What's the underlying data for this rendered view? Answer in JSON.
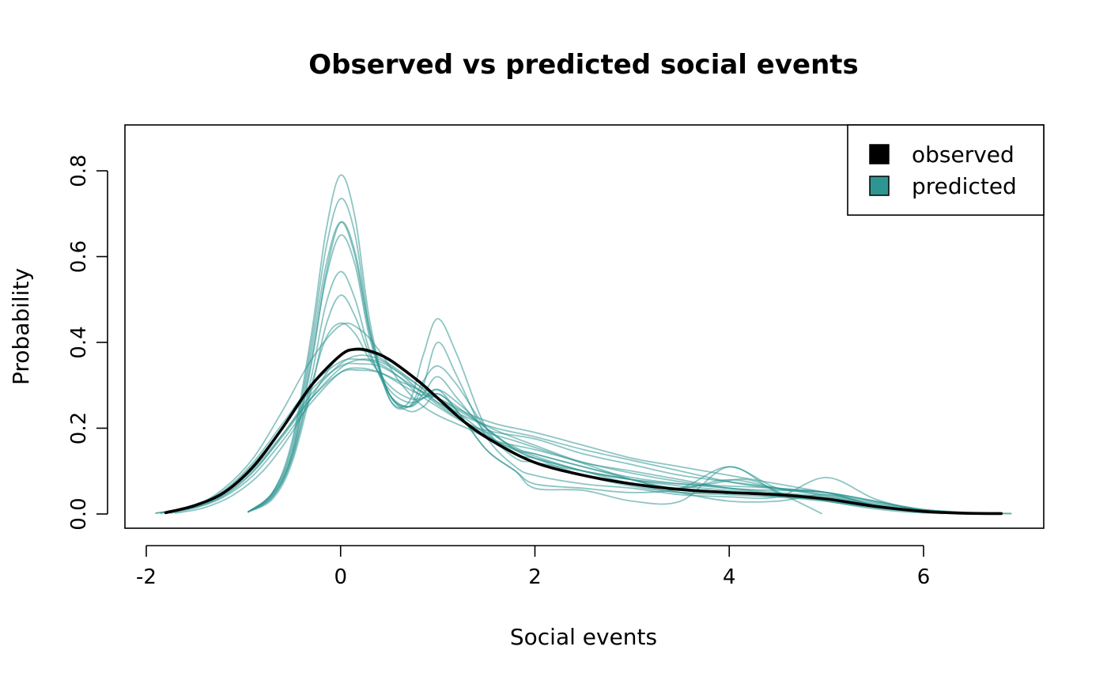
{
  "chart_data": {
    "type": "line",
    "title": "Observed vs predicted social events",
    "xlabel": "Social events",
    "ylabel": "Probability",
    "xlim": [
      -2,
      7
    ],
    "ylim": [
      0,
      0.9
    ],
    "xticks": [
      -2,
      0,
      2,
      4,
      6
    ],
    "yticks": [
      0.0,
      0.2,
      0.4,
      0.6,
      0.8
    ],
    "xtick_labels": [
      "-2",
      "0",
      "2",
      "4",
      "6"
    ],
    "ytick_labels": [
      "0.0",
      "0.2",
      "0.4",
      "0.6",
      "0.8"
    ],
    "grid": false,
    "legend": {
      "position": "top-right",
      "entries": [
        {
          "label": "observed",
          "color": "#000000"
        },
        {
          "label": "predicted",
          "color": "#2e9692"
        }
      ]
    },
    "colors": {
      "observed": "#000000",
      "predicted": "#2e9692"
    },
    "series": [
      {
        "name": "observed",
        "x": [
          -1.8,
          -1.5,
          -1.2,
          -0.9,
          -0.6,
          -0.3,
          0.0,
          0.15,
          0.3,
          0.5,
          0.8,
          1.0,
          1.3,
          1.6,
          2.0,
          2.5,
          3.0,
          3.5,
          4.0,
          4.5,
          5.0,
          5.5,
          6.0,
          6.4,
          6.8
        ],
        "y": [
          0.003,
          0.02,
          0.05,
          0.11,
          0.2,
          0.3,
          0.37,
          0.384,
          0.38,
          0.36,
          0.31,
          0.27,
          0.21,
          0.165,
          0.12,
          0.09,
          0.07,
          0.057,
          0.05,
          0.045,
          0.035,
          0.018,
          0.006,
          0.002,
          0.001
        ]
      },
      {
        "name": "predicted",
        "x": [
          -1.9,
          -1.5,
          -1.2,
          -0.9,
          -0.6,
          -0.3,
          0.0,
          0.2,
          0.4,
          0.6,
          0.8,
          1.0,
          1.3,
          1.6,
          2.0,
          2.5,
          3.0,
          3.5,
          4.0,
          4.5,
          5.0,
          5.5,
          6.0,
          6.5,
          6.9
        ],
        "y": [
          0.002,
          0.015,
          0.04,
          0.09,
          0.17,
          0.26,
          0.33,
          0.34,
          0.33,
          0.31,
          0.29,
          0.26,
          0.225,
          0.2,
          0.18,
          0.15,
          0.125,
          0.1,
          0.075,
          0.058,
          0.045,
          0.025,
          0.01,
          0.003,
          0.001
        ]
      },
      {
        "name": "predicted",
        "x": [
          -1.85,
          -1.5,
          -1.2,
          -0.9,
          -0.6,
          -0.3,
          0.0,
          0.2,
          0.4,
          0.6,
          0.8,
          1.0,
          1.3,
          1.6,
          2.0,
          2.5,
          3.0,
          3.5,
          4.0,
          4.5,
          5.0,
          5.5,
          6.0,
          6.5,
          6.9
        ],
        "y": [
          0.002,
          0.02,
          0.055,
          0.12,
          0.21,
          0.3,
          0.355,
          0.36,
          0.35,
          0.32,
          0.28,
          0.25,
          0.21,
          0.19,
          0.175,
          0.14,
          0.115,
          0.09,
          0.075,
          0.06,
          0.042,
          0.022,
          0.008,
          0.002,
          0.001
        ]
      },
      {
        "name": "predicted",
        "x": [
          -1.8,
          -1.5,
          -1.2,
          -0.9,
          -0.6,
          -0.3,
          0.0,
          0.2,
          0.4,
          0.6,
          0.8,
          1.0,
          1.3,
          1.6,
          2.0,
          2.5,
          3.0,
          3.5,
          4.0,
          4.5,
          5.0,
          5.5,
          6.0,
          6.4
        ],
        "y": [
          0.002,
          0.018,
          0.05,
          0.105,
          0.185,
          0.27,
          0.33,
          0.335,
          0.33,
          0.305,
          0.28,
          0.27,
          0.235,
          0.21,
          0.19,
          0.16,
          0.13,
          0.11,
          0.09,
          0.07,
          0.05,
          0.028,
          0.01,
          0.003
        ]
      },
      {
        "name": "predicted",
        "x": [
          -0.95,
          -0.7,
          -0.5,
          -0.3,
          -0.15,
          0.0,
          0.15,
          0.3,
          0.5,
          0.7,
          0.85,
          1.0,
          1.2,
          1.5,
          1.8,
          2.0,
          2.5,
          3.0,
          3.5,
          4.0,
          4.5,
          5.0,
          5.5,
          6.0
        ],
        "y": [
          0.005,
          0.05,
          0.17,
          0.42,
          0.66,
          0.79,
          0.69,
          0.45,
          0.27,
          0.25,
          0.31,
          0.345,
          0.3,
          0.2,
          0.155,
          0.14,
          0.11,
          0.085,
          0.07,
          0.06,
          0.05,
          0.04,
          0.02,
          0.005
        ]
      },
      {
        "name": "predicted",
        "x": [
          -0.95,
          -0.7,
          -0.5,
          -0.3,
          -0.15,
          0.0,
          0.15,
          0.3,
          0.5,
          0.7,
          0.85,
          1.0,
          1.2,
          1.5,
          1.8,
          2.0,
          2.5,
          3.0,
          3.5,
          4.0,
          4.5,
          5.0,
          5.5,
          6.0
        ],
        "y": [
          0.005,
          0.05,
          0.16,
          0.4,
          0.62,
          0.735,
          0.65,
          0.43,
          0.27,
          0.26,
          0.37,
          0.455,
          0.37,
          0.2,
          0.14,
          0.13,
          0.1,
          0.08,
          0.065,
          0.055,
          0.045,
          0.035,
          0.018,
          0.004
        ]
      },
      {
        "name": "predicted",
        "x": [
          -0.95,
          -0.7,
          -0.5,
          -0.3,
          -0.15,
          0.0,
          0.15,
          0.3,
          0.5,
          0.7,
          0.85,
          1.0,
          1.2,
          1.5,
          1.8,
          2.0,
          2.5,
          3.0,
          3.5,
          4.0,
          4.5,
          5.0,
          5.5,
          6.0
        ],
        "y": [
          0.005,
          0.05,
          0.15,
          0.38,
          0.58,
          0.68,
          0.6,
          0.42,
          0.28,
          0.24,
          0.25,
          0.28,
          0.24,
          0.15,
          0.1,
          0.06,
          0.055,
          0.03,
          0.03,
          0.11,
          0.05,
          0.03,
          0.015,
          0.004
        ]
      },
      {
        "name": "predicted",
        "x": [
          -0.95,
          -0.7,
          -0.5,
          -0.3,
          -0.15,
          0.0,
          0.15,
          0.3,
          0.5,
          0.7,
          0.85,
          1.0,
          1.2,
          1.5,
          1.8,
          2.0,
          2.5,
          3.0,
          3.5,
          4.0,
          4.5,
          5.0,
          5.5,
          6.0
        ],
        "y": [
          0.005,
          0.045,
          0.14,
          0.36,
          0.55,
          0.65,
          0.58,
          0.41,
          0.28,
          0.25,
          0.3,
          0.4,
          0.32,
          0.18,
          0.11,
          0.09,
          0.07,
          0.06,
          0.045,
          0.04,
          0.04,
          0.085,
          0.035,
          0.005
        ]
      },
      {
        "name": "predicted",
        "x": [
          -0.95,
          -0.7,
          -0.5,
          -0.3,
          -0.15,
          0.0,
          0.15,
          0.3,
          0.5,
          0.7,
          0.85,
          1.0,
          1.2,
          1.5,
          1.8,
          2.0,
          2.5,
          3.0,
          3.5,
          4.0,
          4.5,
          5.0,
          5.5,
          6.0
        ],
        "y": [
          0.005,
          0.04,
          0.13,
          0.32,
          0.49,
          0.565,
          0.5,
          0.38,
          0.28,
          0.25,
          0.28,
          0.32,
          0.27,
          0.19,
          0.13,
          0.12,
          0.1,
          0.08,
          0.06,
          0.08,
          0.06,
          0.05,
          0.02,
          0.004
        ]
      },
      {
        "name": "predicted",
        "x": [
          -0.95,
          -0.7,
          -0.5,
          -0.3,
          -0.15,
          0.0,
          0.15,
          0.3,
          0.5,
          0.7,
          0.85,
          1.0,
          1.2,
          1.5,
          1.8,
          2.0,
          2.5,
          3.0,
          3.5,
          4.0,
          4.5,
          5.0,
          5.5,
          6.0
        ],
        "y": [
          0.005,
          0.035,
          0.12,
          0.29,
          0.44,
          0.51,
          0.46,
          0.37,
          0.29,
          0.26,
          0.27,
          0.29,
          0.26,
          0.2,
          0.15,
          0.14,
          0.11,
          0.08,
          0.05,
          0.03,
          0.03,
          0.045,
          0.02,
          0.004
        ]
      },
      {
        "name": "predicted",
        "x": [
          -1.9,
          -1.5,
          -1.2,
          -0.9,
          -0.6,
          -0.3,
          0.0,
          0.2,
          0.4,
          0.6,
          0.8,
          1.0,
          1.3,
          1.6,
          2.0,
          2.5,
          3.0,
          3.5,
          4.0,
          4.5,
          5.0,
          5.4,
          5.8,
          6.2
        ],
        "y": [
          0.002,
          0.02,
          0.06,
          0.13,
          0.24,
          0.36,
          0.44,
          0.43,
          0.38,
          0.31,
          0.26,
          0.23,
          0.2,
          0.17,
          0.15,
          0.12,
          0.095,
          0.075,
          0.06,
          0.045,
          0.03,
          0.015,
          0.005,
          0.001
        ]
      },
      {
        "name": "predicted",
        "x": [
          -1.7,
          -1.4,
          -1.1,
          -0.8,
          -0.5,
          -0.25,
          0.0,
          0.25,
          0.5,
          0.8,
          1.0,
          1.4,
          1.8,
          2.2,
          2.6,
          3.0,
          3.4,
          3.8,
          4.2,
          4.6,
          4.95
        ],
        "y": [
          0.002,
          0.015,
          0.045,
          0.1,
          0.19,
          0.29,
          0.37,
          0.38,
          0.35,
          0.3,
          0.26,
          0.2,
          0.17,
          0.14,
          0.11,
          0.08,
          0.06,
          0.07,
          0.08,
          0.04,
          0.001
        ]
      },
      {
        "name": "predicted",
        "x": [
          -1.8,
          -1.5,
          -1.2,
          -0.9,
          -0.6,
          -0.3,
          0.0,
          0.2,
          0.4,
          0.6,
          0.8,
          1.0,
          1.3,
          1.6,
          2.0,
          2.5,
          3.0,
          3.5,
          4.0,
          4.5,
          5.0,
          5.5,
          6.0,
          6.5
        ],
        "y": [
          0.002,
          0.02,
          0.052,
          0.115,
          0.2,
          0.29,
          0.345,
          0.35,
          0.345,
          0.32,
          0.29,
          0.27,
          0.23,
          0.195,
          0.16,
          0.12,
          0.1,
          0.08,
          0.06,
          0.055,
          0.05,
          0.03,
          0.01,
          0.002
        ]
      },
      {
        "name": "predicted",
        "x": [
          -1.75,
          -1.45,
          -1.15,
          -0.85,
          -0.55,
          -0.3,
          0.0,
          0.2,
          0.4,
          0.6,
          0.8,
          1.0,
          1.3,
          1.6,
          2.0,
          2.5,
          3.0,
          3.5,
          4.0,
          4.5,
          5.0,
          5.5,
          6.0,
          6.5
        ],
        "y": [
          0.002,
          0.018,
          0.05,
          0.11,
          0.2,
          0.28,
          0.35,
          0.37,
          0.36,
          0.33,
          0.29,
          0.255,
          0.21,
          0.17,
          0.135,
          0.1,
          0.08,
          0.07,
          0.065,
          0.06,
          0.05,
          0.03,
          0.01,
          0.002
        ]
      },
      {
        "name": "predicted",
        "x": [
          -1.85,
          -1.5,
          -1.2,
          -0.9,
          -0.6,
          -0.3,
          0.0,
          0.2,
          0.4,
          0.6,
          0.8,
          1.0,
          1.3,
          1.6,
          2.0,
          2.5,
          3.0,
          3.5,
          4.0,
          4.5,
          5.0,
          5.5,
          6.0,
          6.5
        ],
        "y": [
          0.002,
          0.016,
          0.045,
          0.1,
          0.18,
          0.27,
          0.34,
          0.36,
          0.355,
          0.33,
          0.3,
          0.27,
          0.22,
          0.17,
          0.13,
          0.09,
          0.065,
          0.05,
          0.045,
          0.04,
          0.035,
          0.02,
          0.008,
          0.002
        ]
      },
      {
        "name": "predicted",
        "x": [
          -0.95,
          -0.7,
          -0.5,
          -0.3,
          -0.15,
          0.0,
          0.15,
          0.3,
          0.5,
          0.7,
          0.85,
          1.0,
          1.2,
          1.5,
          1.8,
          2.0,
          2.5,
          3.0,
          3.5,
          4.0,
          4.5,
          5.0,
          5.5,
          6.0
        ],
        "y": [
          0.005,
          0.04,
          0.13,
          0.3,
          0.41,
          0.445,
          0.42,
          0.36,
          0.3,
          0.27,
          0.27,
          0.28,
          0.25,
          0.2,
          0.15,
          0.13,
          0.1,
          0.07,
          0.05,
          0.05,
          0.04,
          0.03,
          0.015,
          0.004
        ]
      },
      {
        "name": "predicted",
        "x": [
          -0.95,
          -0.7,
          -0.5,
          -0.3,
          -0.15,
          0.0,
          0.15,
          0.3,
          0.5,
          0.7,
          0.85,
          1.0,
          1.2,
          1.5,
          1.8,
          2.0,
          2.5,
          3.0,
          3.5,
          4.0,
          4.5,
          5.0,
          5.5,
          6.0
        ],
        "y": [
          0.005,
          0.045,
          0.14,
          0.35,
          0.56,
          0.68,
          0.61,
          0.43,
          0.28,
          0.25,
          0.27,
          0.29,
          0.24,
          0.15,
          0.1,
          0.07,
          0.06,
          0.05,
          0.06,
          0.11,
          0.06,
          0.05,
          0.02,
          0.004
        ]
      }
    ]
  }
}
